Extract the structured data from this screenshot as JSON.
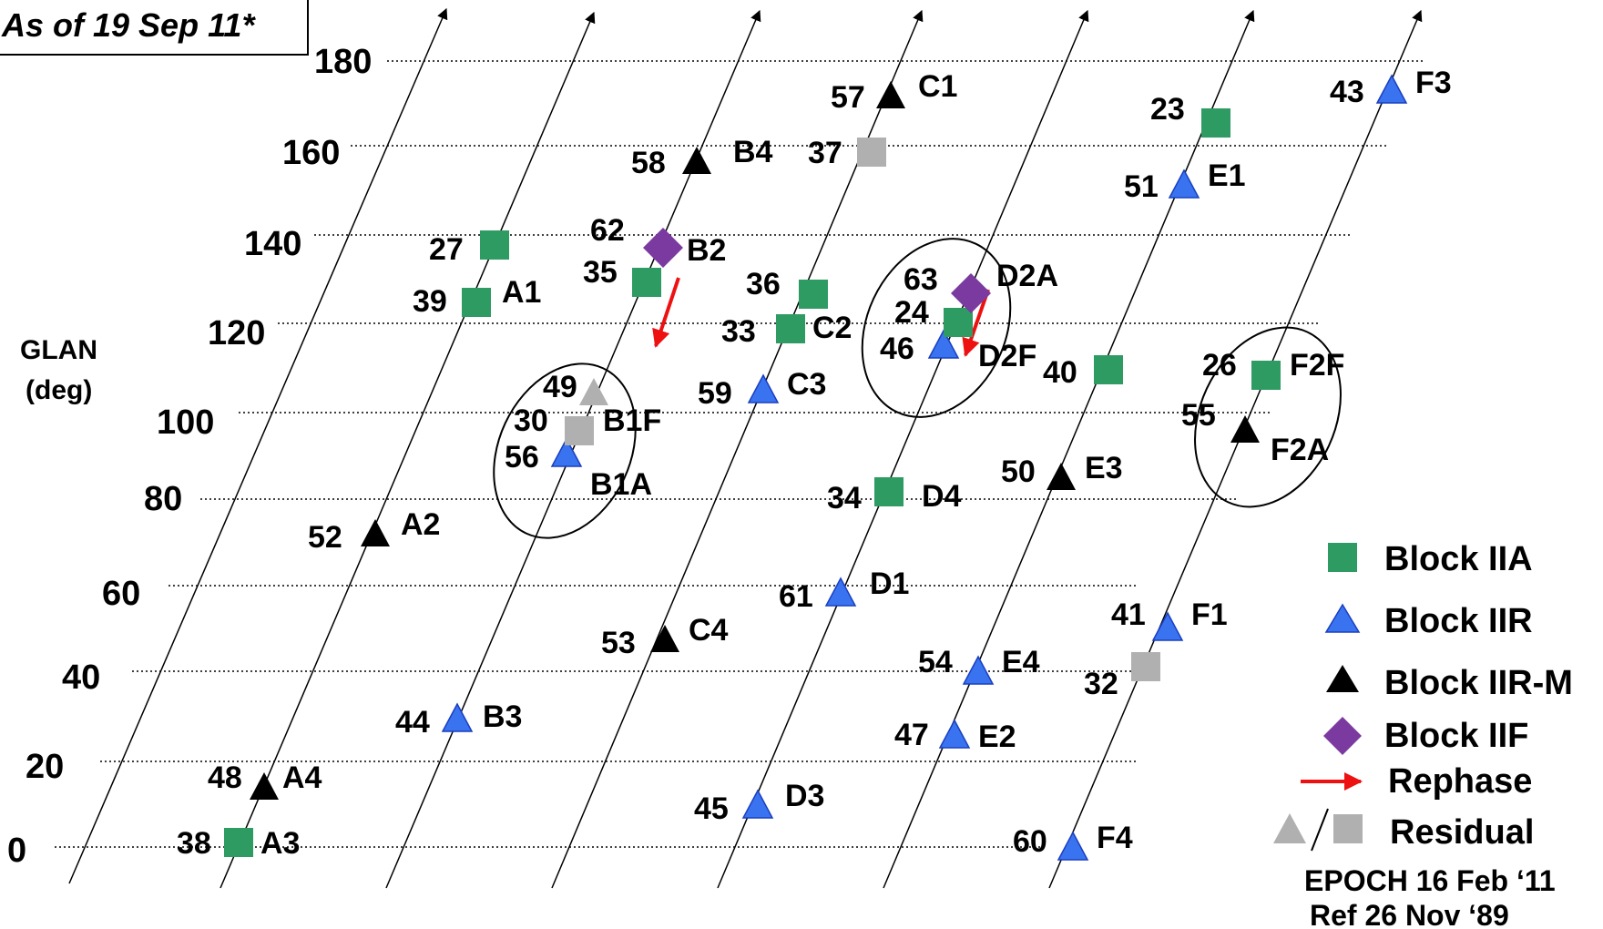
{
  "as_of": "As of 19 Sep 11*",
  "y_axis": {
    "label_line1": "GLAN",
    "label_line2": "(deg)",
    "ticks": [
      "0",
      "20",
      "40",
      "60",
      "80",
      "100",
      "120",
      "140",
      "160",
      "180"
    ]
  },
  "colors": {
    "block_iia": "#2e9b63",
    "block_iir": "#3a73f0",
    "block_iir_m": "#000000",
    "block_iif": "#7a3aa0",
    "rephase": "#ee1111",
    "residual": "#b0b0b0"
  },
  "legend": {
    "block_iia": "Block IIA",
    "block_iir": "Block IIR",
    "block_iir_m": "Block IIR-M",
    "block_iif": "Block IIF",
    "rephase": "Rephase",
    "residual": "Residual"
  },
  "footer": {
    "epoch": "EPOCH 16 Feb ‘11",
    "ref": "Ref 26 Nov ‘89"
  },
  "satellites": [
    {
      "num": "38",
      "slot": "A3",
      "type": "iia",
      "glan": 2
    },
    {
      "num": "48",
      "slot": "A4",
      "type": "iirm",
      "glan": 18
    },
    {
      "num": "52",
      "slot": "A2",
      "type": "iirm",
      "glan": 74
    },
    {
      "num": "39",
      "slot": "A1",
      "type": "iia",
      "glan": 125
    },
    {
      "num": "27",
      "slot": "",
      "type": "iia",
      "glan": 137
    },
    {
      "num": "44",
      "slot": "B3",
      "type": "iir",
      "glan": 30
    },
    {
      "num": "56",
      "slot": "B1A",
      "type": "iir",
      "glan": 93
    },
    {
      "num": "30",
      "slot": "B1F",
      "type": "res_sq",
      "glan": 99
    },
    {
      "num": "49",
      "slot": "",
      "type": "res_tri",
      "glan": 106
    },
    {
      "num": "35",
      "slot": "",
      "type": "iia",
      "glan": 129
    },
    {
      "num": "62",
      "slot": "B2",
      "type": "iif",
      "glan": 137
    },
    {
      "num": "58",
      "slot": "B4",
      "type": "iirm",
      "glan": 157
    },
    {
      "num": "53",
      "slot": "C4",
      "type": "iirm",
      "glan": 50
    },
    {
      "num": "59",
      "slot": "C3",
      "type": "iir",
      "glan": 108
    },
    {
      "num": "33",
      "slot": "C2",
      "type": "iia",
      "glan": 120
    },
    {
      "num": "36",
      "slot": "",
      "type": "iia",
      "glan": 127
    },
    {
      "num": "37",
      "slot": "",
      "type": "res_sq",
      "glan": 158
    },
    {
      "num": "57",
      "slot": "C1",
      "type": "iirm",
      "glan": 173
    },
    {
      "num": "45",
      "slot": "D3",
      "type": "iir",
      "glan": 12
    },
    {
      "num": "61",
      "slot": "D1",
      "type": "iir",
      "glan": 60
    },
    {
      "num": "34",
      "slot": "D4",
      "type": "iia",
      "glan": 83
    },
    {
      "num": "46",
      "slot": "D2F",
      "type": "iir",
      "glan": 116
    },
    {
      "num": "24",
      "slot": "",
      "type": "iia",
      "glan": 121
    },
    {
      "num": "63",
      "slot": "D2A",
      "type": "iif",
      "glan": 127
    },
    {
      "num": "47",
      "slot": "E2",
      "type": "iir",
      "glan": 29
    },
    {
      "num": "54",
      "slot": "E4",
      "type": "iir",
      "glan": 42
    },
    {
      "num": "50",
      "slot": "E3",
      "type": "iirm",
      "glan": 87
    },
    {
      "num": "40",
      "slot": "",
      "type": "iia",
      "glan": 111
    },
    {
      "num": "51",
      "slot": "E1",
      "type": "iir",
      "glan": 151
    },
    {
      "num": "23",
      "slot": "",
      "type": "iia",
      "glan": 167
    },
    {
      "num": "60",
      "slot": "F4",
      "type": "iir",
      "glan": 2
    },
    {
      "num": "32",
      "slot": "",
      "type": "res_sq",
      "glan": 43
    },
    {
      "num": "41",
      "slot": "F1",
      "type": "iir",
      "glan": 51
    },
    {
      "num": "55",
      "slot": "F2A",
      "type": "iirm",
      "glan": 98
    },
    {
      "num": "26",
      "slot": "F2F",
      "type": "iia",
      "glan": 110
    },
    {
      "num": "43",
      "slot": "F3",
      "type": "iir",
      "glan": 173
    }
  ]
}
